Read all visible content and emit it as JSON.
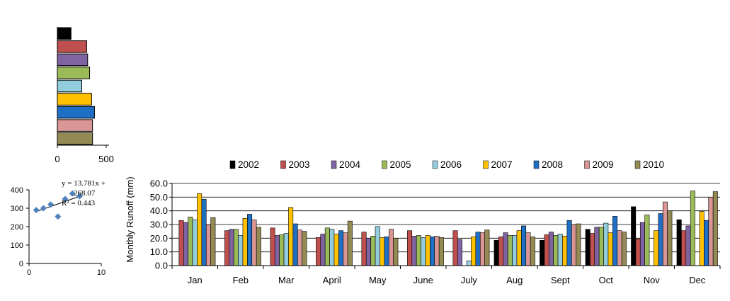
{
  "chart_data": [
    {
      "type": "bar",
      "orientation": "horizontal",
      "values": [
        140,
        300,
        310,
        330,
        250,
        350,
        380,
        360,
        360
      ],
      "colors": [
        "#000000",
        "#C0504D",
        "#8064A2",
        "#9BBB59",
        "#93CDDD",
        "#FFC000",
        "#1F6FC5",
        "#D99694",
        "#948A54"
      ],
      "xlim": [
        0,
        500
      ],
      "x_ticks": [
        0,
        500
      ],
      "tick_labels": [
        "0",
        "500"
      ]
    },
    {
      "type": "scatter",
      "points": [
        [
          1,
          290
        ],
        [
          2,
          300
        ],
        [
          3,
          320
        ],
        [
          4,
          255
        ],
        [
          5,
          350
        ],
        [
          6,
          380
        ],
        [
          7,
          365
        ]
      ],
      "marker_color": "#4F81BD",
      "trendline": {
        "slope": 13.781,
        "intercept": 268.07
      },
      "equation_line1": "y = 13.781x +",
      "equation_line2": "268.07",
      "r_squared_label": "R² = 0.443",
      "xlim": [
        0,
        10
      ],
      "ylim": [
        0,
        400
      ],
      "x_ticks": [
        "0",
        "10"
      ],
      "y_ticks": [
        "0",
        "100",
        "200",
        "300",
        "400"
      ]
    },
    {
      "type": "bar",
      "ylabel": "Monthly  Runoff (mm)",
      "ylim": [
        0,
        60
      ],
      "y_ticks": [
        "0.0",
        "10.0",
        "20.0",
        "30.0",
        "40.0",
        "50.0",
        "60.0"
      ],
      "grid": true,
      "legend_position": "top",
      "categories": [
        "Jan",
        "Feb",
        "Mar",
        "April",
        "May",
        "June",
        "July",
        "Aug",
        "Sept",
        "Oct",
        "Nov",
        "Dec"
      ],
      "series": [
        {
          "name": "2002",
          "color": "#000000",
          "values": [
            0,
            0,
            0,
            0,
            0,
            0,
            0,
            18.5,
            18.5,
            26.5,
            43,
            33.5
          ]
        },
        {
          "name": "2003",
          "color": "#C0504D",
          "values": [
            33,
            25.5,
            27.5,
            20.5,
            24.5,
            25.5,
            25.5,
            21,
            22.5,
            23.5,
            19.5,
            25.5
          ]
        },
        {
          "name": "2004",
          "color": "#8064A2",
          "values": [
            31.5,
            26.5,
            22,
            23,
            20,
            21.5,
            19,
            24,
            24.5,
            28,
            31.5,
            29
          ]
        },
        {
          "name": "2005",
          "color": "#9BBB59",
          "values": [
            35.5,
            26.5,
            22.5,
            27.5,
            21.5,
            22,
            0,
            22,
            22,
            28,
            37,
            54.5
          ]
        },
        {
          "name": "2006",
          "color": "#93CDDD",
          "values": [
            33.5,
            22,
            23.5,
            26.5,
            28.5,
            20.5,
            3.5,
            22,
            23,
            31,
            0,
            0
          ]
        },
        {
          "name": "2007",
          "color": "#FFC000",
          "values": [
            52.5,
            34.5,
            42.5,
            23,
            20.5,
            22,
            21,
            25.5,
            21.5,
            24,
            25.5,
            39.5
          ]
        },
        {
          "name": "2008",
          "color": "#1F6FC5",
          "values": [
            48.5,
            37.5,
            30.5,
            25.5,
            21,
            21,
            24.5,
            29,
            33,
            36,
            38,
            33
          ]
        },
        {
          "name": "2009",
          "color": "#D99694",
          "values": [
            30,
            33.5,
            26,
            24,
            26.5,
            21.5,
            24,
            24,
            30,
            25.5,
            46.5,
            50
          ]
        },
        {
          "name": "2010",
          "color": "#948A54",
          "values": [
            35,
            28,
            25,
            32.5,
            20,
            20.5,
            26,
            21,
            30.5,
            24.5,
            40,
            54
          ]
        }
      ]
    }
  ]
}
